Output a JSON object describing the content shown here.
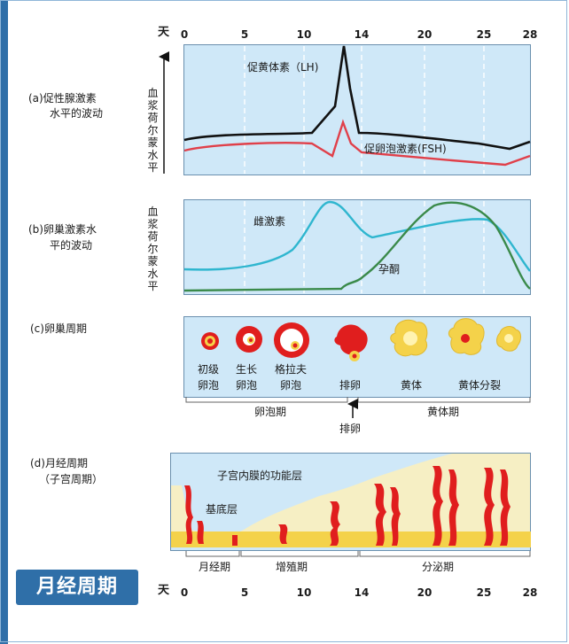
{
  "title": "月经周期",
  "days_label": "天",
  "days": [
    "0",
    "5",
    "10",
    "14",
    "20",
    "25",
    "28"
  ],
  "sections": {
    "a": {
      "label_line1": "(a)促性腺激素",
      "label_line2": "水平的波动",
      "ylabel": "血浆荷尔蒙水平",
      "lh_label": "促黄体素（LH)",
      "fsh_label": "促卵泡激素(FSH)"
    },
    "b": {
      "label_line1": "(b)卵巢激素水",
      "label_line2": "平的波动",
      "ylabel": "血浆荷尔蒙水平",
      "estrogen_label": "雌激素",
      "progesterone_label": "孕酮"
    },
    "c": {
      "label": "(c)卵巢周期",
      "stages": [
        {
          "line1": "初级",
          "line2": "卵泡"
        },
        {
          "line1": "生长",
          "line2": "卵泡"
        },
        {
          "line1": "格拉夫",
          "line2": "卵泡"
        },
        {
          "line1": "排卵",
          "line2": ""
        },
        {
          "line1": "黄体",
          "line2": ""
        },
        {
          "line1": "黄体分裂",
          "line2": ""
        }
      ],
      "follicular_phase": "卵泡期",
      "luteal_phase": "黄体期",
      "ovulation": "排卵"
    },
    "d": {
      "label_line1": "(d)月经周期",
      "label_line2": "（子宫周期）",
      "functional_layer": "子宫内膜的功能层",
      "basal_layer": "基底层",
      "phases": [
        "月经期",
        "增殖期",
        "分泌期"
      ]
    }
  },
  "colors": {
    "panel": "#cfe8f8",
    "lh": "#111111",
    "fsh": "#e0404a",
    "estrogen": "#2fb6cf",
    "progesterone": "#3a8a4a",
    "red": "#e01e1e",
    "yellow": "#f4d24a",
    "accent": "#2f6fa8"
  }
}
